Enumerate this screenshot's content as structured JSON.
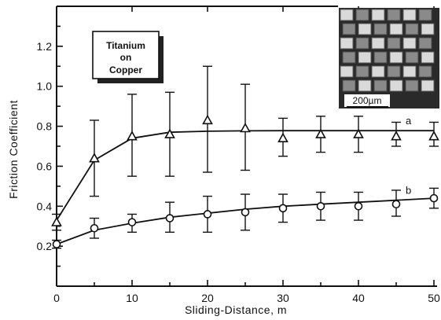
{
  "chart_data": {
    "type": "line",
    "xlabel": "Sliding-Distance, m",
    "ylabel": "Friction Coefficient",
    "xlim": [
      0,
      50
    ],
    "ylim": [
      0,
      1.4
    ],
    "x_ticks": [
      0,
      10,
      20,
      30,
      40,
      50
    ],
    "y_ticks": [
      0.2,
      0.4,
      0.6,
      0.8,
      1.0,
      1.2
    ],
    "y_tick_labels": [
      "0.2",
      "0.4",
      "0.6",
      "0.8",
      "1.0",
      "1.2"
    ],
    "x_tick_labels": [
      "0",
      "10",
      "20",
      "30",
      "40",
      "50"
    ],
    "grid": false,
    "annotation": "Titanium on Copper",
    "inset_scale_label": "200µm",
    "series": [
      {
        "label": "a",
        "marker": "triangle",
        "x": [
          0,
          5,
          10,
          15,
          20,
          25,
          30,
          35,
          40,
          45,
          50
        ],
        "y": [
          0.32,
          0.64,
          0.75,
          0.76,
          0.83,
          0.79,
          0.74,
          0.76,
          0.76,
          0.75,
          0.75
        ],
        "err_low": [
          0.28,
          0.45,
          0.55,
          0.55,
          0.57,
          0.58,
          0.65,
          0.67,
          0.67,
          0.7,
          0.7
        ],
        "err_high": [
          0.36,
          0.83,
          0.96,
          0.97,
          1.1,
          1.01,
          0.84,
          0.85,
          0.85,
          0.82,
          0.82
        ],
        "curve_y": [
          0.33,
          0.63,
          0.74,
          0.77,
          0.775,
          0.777,
          0.778,
          0.778,
          0.778,
          0.778,
          0.778
        ]
      },
      {
        "label": "b",
        "marker": "circle",
        "x": [
          0,
          5,
          10,
          15,
          20,
          25,
          30,
          35,
          40,
          45,
          50
        ],
        "y": [
          0.21,
          0.29,
          0.32,
          0.34,
          0.36,
          0.37,
          0.39,
          0.4,
          0.4,
          0.41,
          0.44
        ],
        "err_low": [
          0.19,
          0.24,
          0.27,
          0.27,
          0.27,
          0.28,
          0.32,
          0.33,
          0.33,
          0.35,
          0.39
        ],
        "err_high": [
          0.23,
          0.34,
          0.36,
          0.42,
          0.45,
          0.46,
          0.46,
          0.47,
          0.47,
          0.48,
          0.49
        ],
        "curve_y": [
          0.21,
          0.28,
          0.315,
          0.345,
          0.365,
          0.385,
          0.4,
          0.41,
          0.42,
          0.43,
          0.44
        ]
      }
    ]
  }
}
